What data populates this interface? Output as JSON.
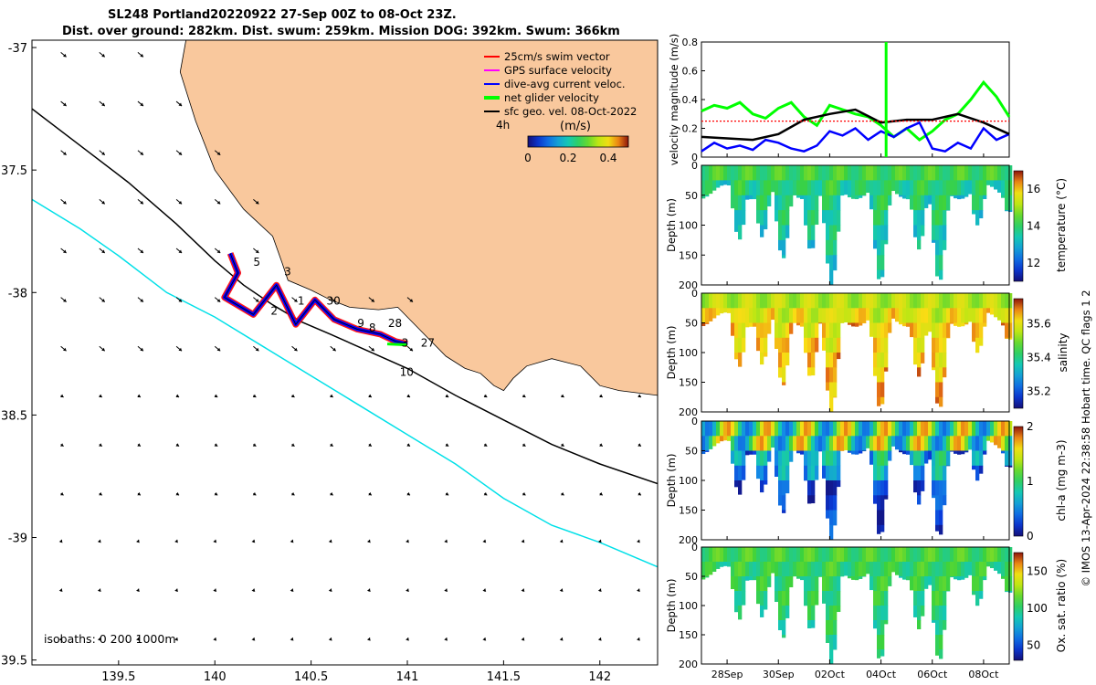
{
  "title": {
    "line1": "SL248 Portland20220922 27-Sep 00Z to 08-Oct 23Z.",
    "line2": "Dist. over ground: 282km. Dist. swum: 259km. Mission DOG: 392km. Swum: 366km"
  },
  "colors": {
    "land": "#f9c89d",
    "swim": "#ff0000",
    "gps": "#ff00ff",
    "dive": "#0000ff",
    "net": "#00ff00",
    "sfc": "#000000",
    "isobath": "#00e0e8"
  },
  "side_note": "© IMOS 13-Apr-2024 22:38:58 Hobart time. QC flags 1  2",
  "chart_data": [
    {
      "id": "map",
      "type": "scatter",
      "title": "SL248 Portland20220922 27-Sep 00Z to 08-Oct 23Z.",
      "xlim": [
        139.05,
        142.3
      ],
      "ylim": [
        -39.52,
        -36.97
      ],
      "xticks": [
        139.5,
        140,
        140.5,
        141,
        141.5,
        142
      ],
      "xtick_labels": [
        "139.5",
        "140",
        "140.5",
        "141",
        "141.5",
        "142"
      ],
      "yticks": [
        -37,
        -37.5,
        -38,
        -38.5,
        -39,
        -39.5
      ],
      "ytick_labels": [
        "-37",
        "37.5",
        "-38",
        "38.5",
        "-39",
        "39.5"
      ],
      "legend": [
        {
          "label": "25cm/s swim vector",
          "color": "#ff0000"
        },
        {
          "label": "GPS surface velocity",
          "color": "#ff00ff"
        },
        {
          "label": "dive-avg current veloc.",
          "color": "#0000ff"
        },
        {
          "label": "net glider velocity",
          "color": "#00ff00"
        },
        {
          "label": "sfc geo. vel. 08-Oct-2022",
          "color": "#000000"
        }
      ],
      "legend_position": "top-right",
      "colorbar": {
        "label": "(m/s)",
        "prefix": "4h",
        "ticks": [
          "0",
          "0.2",
          "0.4"
        ],
        "range": [
          0,
          0.5
        ]
      },
      "isobaths_label": "isobaths: 0   200  1000m",
      "track": [
        [
          140.08,
          -37.84
        ],
        [
          140.12,
          -37.92
        ],
        [
          140.05,
          -38.02
        ],
        [
          140.2,
          -38.09
        ],
        [
          140.32,
          -37.97
        ],
        [
          140.42,
          -38.13
        ],
        [
          140.52,
          -38.03
        ],
        [
          140.62,
          -38.11
        ],
        [
          140.74,
          -38.15
        ],
        [
          140.86,
          -38.17
        ],
        [
          140.94,
          -38.2
        ],
        [
          141.0,
          -38.21
        ]
      ],
      "day_labels": [
        {
          "text": "5",
          "lon": 140.2,
          "lat": -37.89
        },
        {
          "text": "3",
          "lon": 140.36,
          "lat": -37.93
        },
        {
          "text": "1",
          "lon": 140.43,
          "lat": -38.05
        },
        {
          "text": "30",
          "lon": 140.58,
          "lat": -38.05
        },
        {
          "text": "2",
          "lon": 140.29,
          "lat": -38.09
        },
        {
          "text": "9",
          "lon": 140.74,
          "lat": -38.14
        },
        {
          "text": "8",
          "lon": 140.8,
          "lat": -38.16
        },
        {
          "text": "28",
          "lon": 140.9,
          "lat": -38.14
        },
        {
          "text": "3",
          "lon": 140.97,
          "lat": -38.22
        },
        {
          "text": "27",
          "lon": 141.07,
          "lat": -38.22
        },
        {
          "text": "10",
          "lon": 140.96,
          "lat": -38.34
        }
      ]
    },
    {
      "id": "velocity",
      "type": "line",
      "ylabel": "velocity magnitude (m/s)",
      "ylim": [
        0,
        0.8
      ],
      "yticks": [
        "0",
        "0.2",
        "0.4",
        "0.6",
        "0.8"
      ],
      "x_range_days": [
        27.0,
        39.0
      ],
      "series": [
        {
          "name": "net glider velocity",
          "color": "#00ff00",
          "x": [
            27.0,
            27.5,
            28.0,
            28.5,
            29.0,
            29.5,
            30.0,
            30.5,
            31.0,
            31.5,
            32.0,
            32.5,
            33.0,
            33.5,
            34.0,
            34.5,
            35.0,
            35.5,
            36.0,
            36.5,
            37.0,
            37.5,
            38.0,
            38.5,
            39.0
          ],
          "values": [
            0.32,
            0.36,
            0.34,
            0.38,
            0.3,
            0.27,
            0.34,
            0.38,
            0.28,
            0.22,
            0.36,
            0.33,
            0.3,
            0.28,
            0.22,
            0.14,
            0.2,
            0.12,
            0.18,
            0.26,
            0.3,
            0.4,
            0.52,
            0.42,
            0.28
          ]
        },
        {
          "name": "dive-avg current veloc.",
          "color": "#0000ff",
          "x": [
            27.0,
            27.5,
            28.0,
            28.5,
            29.0,
            29.5,
            30.0,
            30.5,
            31.0,
            31.5,
            32.0,
            32.5,
            33.0,
            33.5,
            34.0,
            34.5,
            35.0,
            35.5,
            36.0,
            36.5,
            37.0,
            37.5,
            38.0,
            38.5,
            39.0
          ],
          "values": [
            0.04,
            0.1,
            0.06,
            0.08,
            0.05,
            0.12,
            0.1,
            0.06,
            0.04,
            0.08,
            0.18,
            0.15,
            0.2,
            0.12,
            0.18,
            0.14,
            0.2,
            0.24,
            0.06,
            0.04,
            0.1,
            0.06,
            0.2,
            0.12,
            0.16
          ]
        },
        {
          "name": "sfc geo. vel.",
          "color": "#000000",
          "x": [
            27.0,
            28.0,
            29.0,
            30.0,
            31.0,
            32.0,
            33.0,
            34.0,
            35.0,
            36.0,
            37.0,
            38.0,
            39.0
          ],
          "values": [
            0.14,
            0.13,
            0.12,
            0.16,
            0.26,
            0.3,
            0.33,
            0.24,
            0.26,
            0.26,
            0.3,
            0.24,
            0.16
          ]
        },
        {
          "name": "25cm/s swim vector",
          "color": "#ff0000",
          "x": [
            27.0,
            39.0
          ],
          "values": [
            0.25,
            0.25
          ]
        }
      ],
      "spike": {
        "x": 34.2,
        "value": 0.8
      }
    },
    {
      "id": "temperature",
      "type": "heatmap",
      "ylabel": "Depth (m)",
      "colorbar_label": "temperature (°C)",
      "yticks": [
        "0",
        "50",
        "100",
        "150",
        "200"
      ],
      "ylim": [
        0,
        200
      ],
      "colorbar_ticks": [
        "12",
        "14",
        "16"
      ],
      "range": [
        11.0,
        17.0
      ],
      "surface_value": 14.2,
      "deep_value": 13.2
    },
    {
      "id": "salinity",
      "type": "heatmap",
      "ylabel": "Depth (m)",
      "colorbar_label": "salinity",
      "yticks": [
        "0",
        "50",
        "100",
        "150",
        "200"
      ],
      "ylim": [
        0,
        200
      ],
      "colorbar_ticks": [
        "35.2",
        "35.4",
        "35.6"
      ],
      "range": [
        35.1,
        35.75
      ],
      "surface_value": 35.55,
      "deep_value": 35.68
    },
    {
      "id": "chla",
      "type": "heatmap",
      "ylabel": "Depth (m)",
      "colorbar_label": "chl-a (mg m-3)",
      "yticks": [
        "0",
        "50",
        "100",
        "150",
        "200"
      ],
      "ylim": [
        0,
        200
      ],
      "colorbar_ticks": [
        "0",
        "1",
        "2"
      ],
      "range": [
        0,
        2
      ],
      "surface_value": 1.2,
      "deep_value": 0.15
    },
    {
      "id": "oxygen",
      "type": "heatmap",
      "ylabel": "Depth (m)",
      "colorbar_label": "Ox. sat. ratio (%)",
      "yticks": [
        "0",
        "50",
        "100",
        "150",
        "200"
      ],
      "ylim": [
        0,
        200
      ],
      "colorbar_ticks": [
        "50",
        "100",
        "150"
      ],
      "range": [
        30,
        175
      ],
      "surface_value": 108,
      "deep_value": 96,
      "x_tick_labels": [
        "28Sep",
        "30Sep",
        "02Oct",
        "04Oct",
        "06Oct",
        "08Oct"
      ],
      "x_tick_days": [
        28,
        30,
        32,
        34,
        36,
        38
      ]
    }
  ]
}
